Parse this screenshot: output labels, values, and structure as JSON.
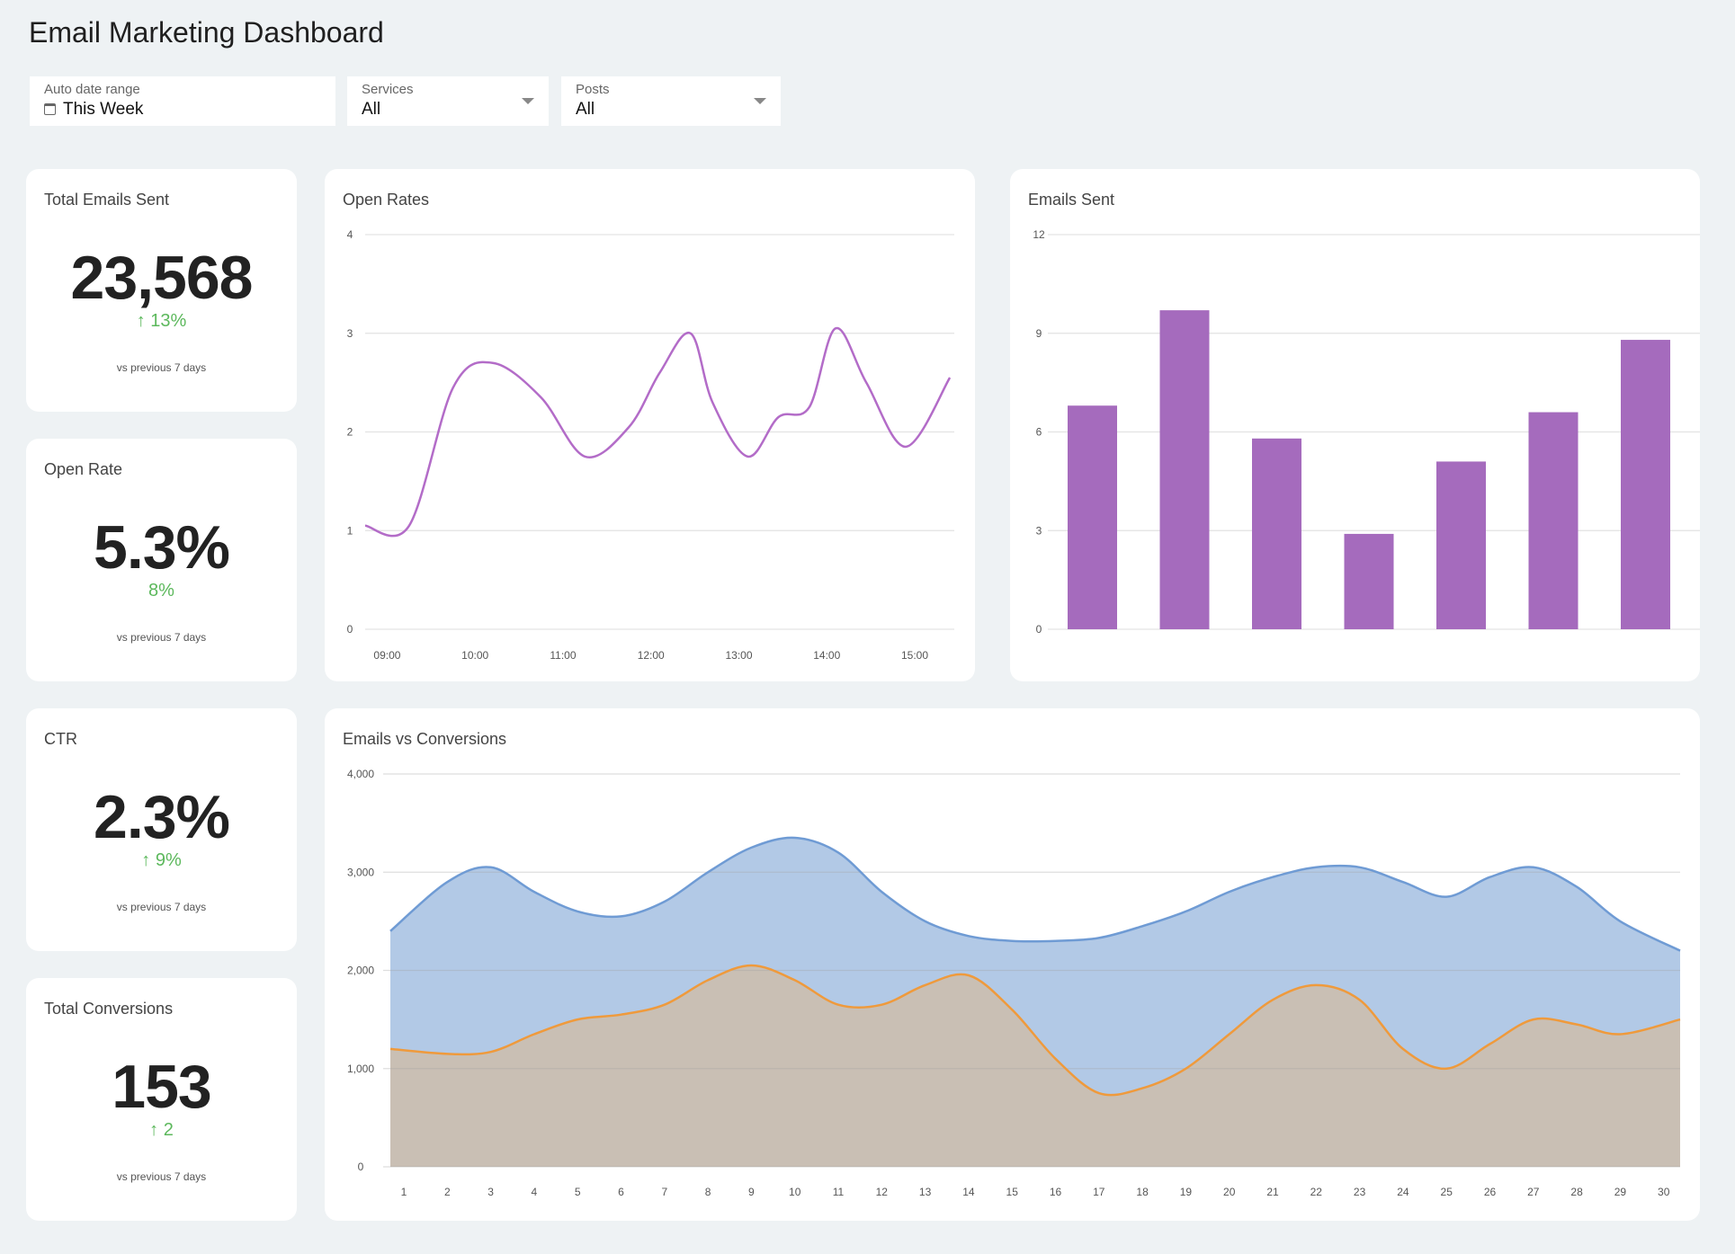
{
  "page": {
    "title": "Email Marketing Dashboard"
  },
  "filters": {
    "date": {
      "label": "Auto date range",
      "value": "This Week"
    },
    "services": {
      "label": "Services",
      "value": "All"
    },
    "posts": {
      "label": "Posts",
      "value": "All"
    }
  },
  "kpis": {
    "emails_sent": {
      "title": "Total Emails Sent",
      "value": "23,568",
      "delta": "13%",
      "arrow": "↑",
      "note": "vs previous 7 days"
    },
    "open_rate": {
      "title": "Open Rate",
      "value": "5.3%",
      "delta": "8%",
      "arrow": "",
      "note": "vs previous 7 days"
    },
    "ctr": {
      "title": "CTR",
      "value": "2.3%",
      "delta": "9%",
      "arrow": "↑",
      "note": "vs previous 7 days"
    },
    "conversions": {
      "title": "Total Conversions",
      "value": "153",
      "delta": "2",
      "arrow": "↑",
      "note": "vs previous 7 days"
    }
  },
  "colors": {
    "positive": "#5cb85c",
    "line_purple": "#b36cc8",
    "bar_purple": "#a56bbd",
    "area_blue_fill": "#b2c9e6",
    "area_blue_line": "#6f9bd4",
    "area_orange_fill": "#c9bfb4",
    "area_orange_line": "#ef9a3c"
  },
  "icons": {
    "date": "calendar-icon",
    "dropdown": "chevron-down-icon"
  },
  "chart_data": [
    {
      "id": "open_rates",
      "type": "line",
      "title": "Open Rates",
      "ylim": [
        0,
        4
      ],
      "yticks": [
        0,
        1,
        2,
        3,
        4
      ],
      "xticks": [
        "09:00",
        "10:00",
        "11:00",
        "12:00",
        "13:00",
        "14:00",
        "15:00"
      ],
      "x": [
        8.75,
        9.25,
        9.75,
        10.2,
        10.75,
        11.25,
        11.75,
        12.1,
        12.45,
        12.7,
        13.1,
        13.45,
        13.8,
        14.1,
        14.45,
        14.9,
        15.4
      ],
      "y": [
        1.05,
        1.05,
        2.45,
        2.7,
        2.35,
        1.75,
        2.05,
        2.6,
        3.0,
        2.3,
        1.75,
        2.15,
        2.25,
        3.05,
        2.5,
        1.85,
        2.55
      ],
      "grid": true
    },
    {
      "id": "emails_sent",
      "type": "bar",
      "title": "Emails Sent",
      "ylim": [
        0,
        12
      ],
      "yticks": [
        0,
        3,
        6,
        9,
        12
      ],
      "values": [
        6.8,
        9.7,
        5.8,
        2.9,
        5.1,
        6.6,
        8.8
      ],
      "grid": true
    },
    {
      "id": "emails_vs_conversions",
      "type": "area",
      "title": "Emails vs Conversions",
      "ylim": [
        0,
        4000
      ],
      "yticks": [
        "0",
        "1,000",
        "2,000",
        "3,000",
        "4,000"
      ],
      "x": [
        1,
        2,
        3,
        4,
        5,
        6,
        7,
        8,
        9,
        10,
        11,
        12,
        13,
        14,
        15,
        16,
        17,
        18,
        19,
        20,
        21,
        22,
        23,
        24,
        25,
        26,
        27,
        28,
        29,
        30
      ],
      "series": [
        {
          "values": [
            2400,
            2900,
            3050,
            2800,
            2600,
            2550,
            2700,
            3000,
            3250,
            3350,
            3200,
            2800,
            2500,
            2350,
            2300,
            2300,
            2330,
            2450,
            2600,
            2800,
            2950,
            3050,
            3050,
            2900,
            2750,
            2950,
            3050,
            2850,
            2500,
            2200
          ]
        },
        {
          "values": [
            1200,
            1150,
            1170,
            1350,
            1500,
            1550,
            1650,
            1900,
            2050,
            1900,
            1650,
            1650,
            1850,
            1950,
            1600,
            1100,
            750,
            800,
            1000,
            1350,
            1700,
            1850,
            1700,
            1200,
            1000,
            1250,
            1500,
            1450,
            1350,
            1500
          ]
        }
      ],
      "grid": true
    }
  ]
}
